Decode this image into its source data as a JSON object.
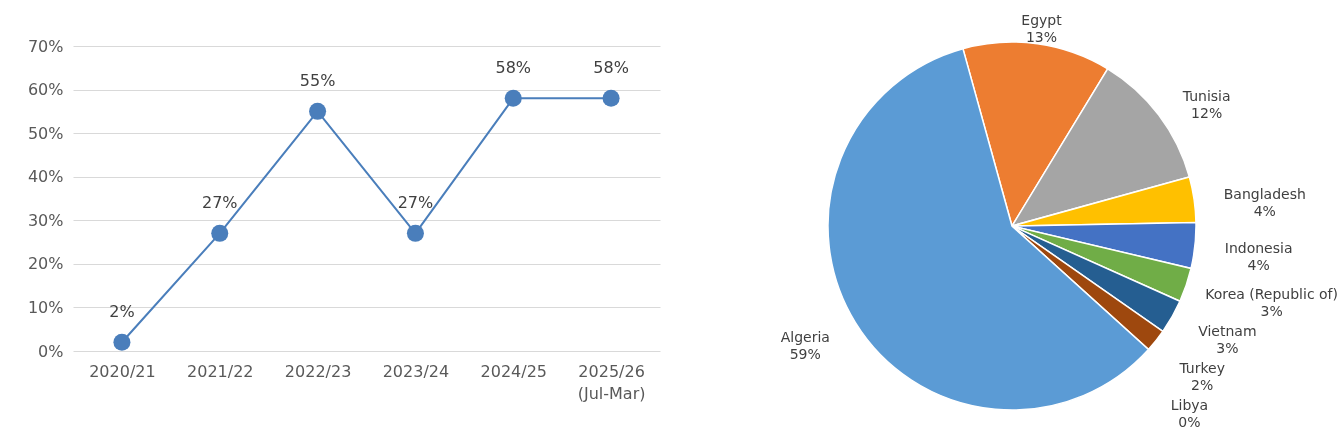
{
  "chart_data": [
    {
      "type": "line",
      "categories": [
        "2020/21",
        "2021/22",
        "2022/23",
        "2023/24",
        "2024/25",
        "2025/26\n(Jul-Mar)"
      ],
      "values": [
        2,
        27,
        55,
        27,
        58,
        58
      ],
      "value_labels": [
        "2%",
        "27%",
        "55%",
        "27%",
        "58%",
        "58%"
      ],
      "color": "#4a7ebb",
      "ylim": [
        0,
        70
      ],
      "yticks": [
        {
          "value": 0,
          "label": "0%"
        },
        {
          "value": 10,
          "label": "10%"
        },
        {
          "value": 20,
          "label": "20%"
        },
        {
          "value": 30,
          "label": "30%"
        },
        {
          "value": 40,
          "label": "40%"
        },
        {
          "value": 50,
          "label": "50%"
        },
        {
          "value": 60,
          "label": "60%"
        },
        {
          "value": 70,
          "label": "70%"
        }
      ],
      "grid": "y",
      "marker": "circle"
    },
    {
      "type": "pie",
      "categories": [
        "Egypt",
        "Tunisia",
        "Bangladesh",
        "Indonesia",
        "Korea (Republic of)",
        "Vietnam",
        "Turkey",
        "Libya",
        "Algeria"
      ],
      "values": [
        13,
        12,
        4,
        4,
        3,
        3,
        2,
        0,
        59
      ],
      "value_labels": [
        "13%",
        "12%",
        "4%",
        "4%",
        "3%",
        "3%",
        "2%",
        "0%",
        "59%"
      ],
      "colors": [
        "#ed7d31",
        "#a5a5a5",
        "#ffc000",
        "#4472c4",
        "#70ad47",
        "#255e91",
        "#9e480e",
        "#636363",
        "#5b9bd5"
      ]
    }
  ]
}
